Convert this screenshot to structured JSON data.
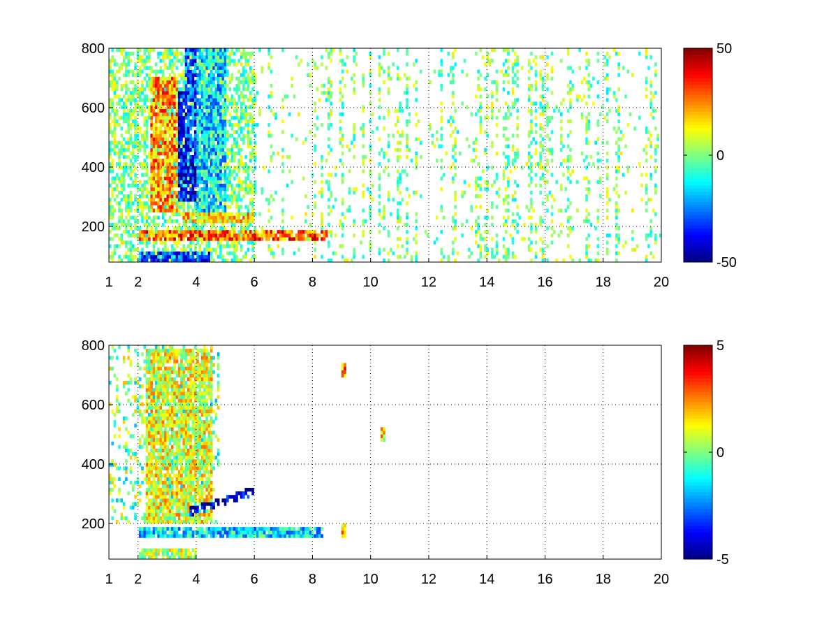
{
  "figure": {
    "background": "#ffffff"
  },
  "chart_data": [
    {
      "type": "heatmap",
      "title": "",
      "xlabel": "",
      "ylabel": "",
      "xlim": [
        1,
        20
      ],
      "ylim": [
        80,
        800
      ],
      "x_ticks": [
        1,
        2,
        4,
        6,
        8,
        10,
        12,
        14,
        16,
        18,
        20
      ],
      "y_ticks": [
        200,
        400,
        600,
        800
      ],
      "x_tick_labels": [
        "1",
        "2",
        "4",
        "6",
        "8",
        "10",
        "12",
        "14",
        "16",
        "18",
        "20"
      ],
      "y_tick_labels": [
        "200",
        "400",
        "600",
        "800"
      ],
      "grid": true,
      "colormap": "jet",
      "color_limits": [
        -50,
        50
      ],
      "colorbar": {
        "ticks": [
          50,
          0,
          -50
        ],
        "labels": [
          "50",
          "0",
          "-50"
        ]
      },
      "features": [
        {
          "kind": "blob",
          "x": [
            2.4,
            3.4
          ],
          "y": [
            250,
            700
          ],
          "value": 22
        },
        {
          "kind": "blob",
          "x": [
            3.4,
            4.2
          ],
          "y": [
            280,
            650
          ],
          "value": -38
        },
        {
          "kind": "blob",
          "x": [
            3.6,
            4.0
          ],
          "y": [
            420,
            800
          ],
          "value": -30
        },
        {
          "kind": "blob",
          "x": [
            4.0,
            5.0
          ],
          "y": [
            250,
            800
          ],
          "value": -15
        },
        {
          "kind": "band",
          "x": [
            2.0,
            8.5
          ],
          "y": 170,
          "value": 28
        },
        {
          "kind": "band",
          "x": [
            2.0,
            4.5
          ],
          "y": 100,
          "value": -30
        },
        {
          "kind": "band",
          "x": [
            3.5,
            6.0
          ],
          "y": 230,
          "value": 15
        }
      ]
    },
    {
      "type": "heatmap",
      "title": "",
      "xlabel": "",
      "ylabel": "",
      "xlim": [
        1,
        20
      ],
      "ylim": [
        80,
        800
      ],
      "x_ticks": [
        1,
        2,
        4,
        6,
        8,
        10,
        12,
        14,
        16,
        18,
        20
      ],
      "y_ticks": [
        200,
        400,
        600,
        800
      ],
      "x_tick_labels": [
        "1",
        "2",
        "4",
        "6",
        "8",
        "10",
        "12",
        "14",
        "16",
        "18",
        "20"
      ],
      "y_tick_labels": [
        "200",
        "400",
        "600",
        "800"
      ],
      "grid": true,
      "colormap": "jet",
      "color_limits": [
        -5,
        5
      ],
      "colorbar": {
        "ticks": [
          5,
          0,
          -5
        ],
        "labels": [
          "5",
          "0",
          "-5"
        ]
      },
      "features": [
        {
          "kind": "blob",
          "x": [
            2.3,
            4.6
          ],
          "y": [
            200,
            790
          ],
          "value": 1.0
        },
        {
          "kind": "band",
          "x": [
            2.0,
            8.4
          ],
          "y": 170,
          "value": -1.5
        },
        {
          "kind": "band",
          "x": [
            2.0,
            4.0
          ],
          "y": 95,
          "value": 0.5
        },
        {
          "kind": "streak",
          "x": [
            3.8,
            6.0
          ],
          "y": [
            240,
            310
          ],
          "value": -4.5
        },
        {
          "kind": "spot",
          "x": 9.1,
          "y": 720,
          "value": 2.5
        },
        {
          "kind": "spot",
          "x": 9.1,
          "y": 180,
          "value": 2.5
        },
        {
          "kind": "spot",
          "x": 10.4,
          "y": 500,
          "value": 1.5
        }
      ]
    }
  ]
}
